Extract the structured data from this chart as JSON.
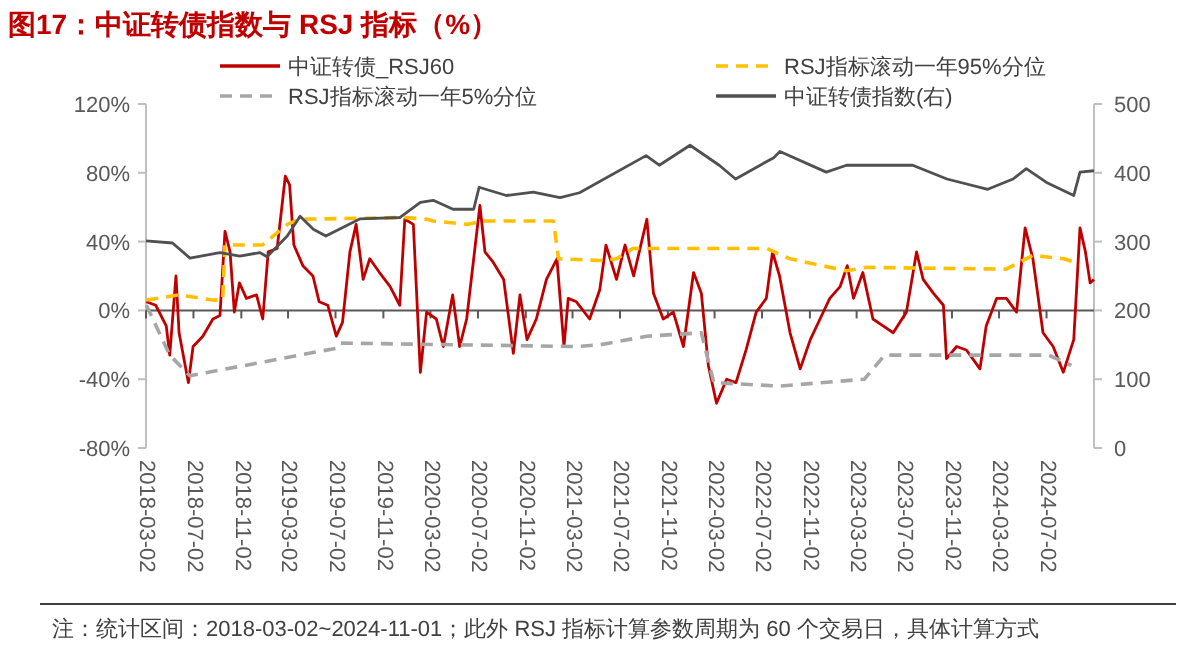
{
  "chart_data": {
    "type": "line",
    "title": "图17：中证转债指数与 RSJ 指标（%）",
    "xlim": [
      "2018-03-02",
      "2024-11-01"
    ],
    "xticks": [
      "2018-03-02",
      "2018-07-02",
      "2018-11-02",
      "2019-03-02",
      "2019-07-02",
      "2019-11-02",
      "2020-03-02",
      "2020-07-02",
      "2020-11-02",
      "2021-03-02",
      "2021-07-02",
      "2021-11-02",
      "2022-03-02",
      "2022-07-02",
      "2022-11-02",
      "2023-03-02",
      "2023-07-02",
      "2023-11-02",
      "2024-03-02",
      "2024-07-02"
    ],
    "ylim": [
      -80,
      120
    ],
    "yticks": [
      {
        "value": -80,
        "label": "-80%"
      },
      {
        "value": -40,
        "label": "-40%"
      },
      {
        "value": 0,
        "label": "0%"
      },
      {
        "value": 40,
        "label": "40%"
      },
      {
        "value": 80,
        "label": "80%"
      },
      {
        "value": 120,
        "label": "120%"
      }
    ],
    "y2lim": [
      0,
      500
    ],
    "y2ticks": [
      0,
      100,
      200,
      300,
      400,
      500
    ],
    "legend": "top",
    "annotations": [
      "注：统计区间：2018-03-02~2024-11-01；此外 RSJ 指标计算参数周期为 60 个交易日，具体计算方式"
    ],
    "series": [
      {
        "name": "中证转债_RSJ60",
        "color": "#c00000",
        "line_style": "solid",
        "x": [
          "2018-03-03",
          "2018-03-27",
          "2018-04-23",
          "2018-05-02",
          "2018-05-18",
          "2018-05-26",
          "2018-06-19",
          "2018-07-01",
          "2018-07-26",
          "2018-08-21",
          "2018-09-08",
          "2018-09-21",
          "2018-10-04",
          "2018-10-15",
          "2018-10-28",
          "2018-11-15",
          "2018-12-11",
          "2018-12-27",
          "2019-01-10",
          "2019-02-02",
          "2019-02-23",
          "2019-03-06",
          "2019-03-17",
          "2019-04-09",
          "2019-05-05",
          "2019-05-21",
          "2019-06-12",
          "2019-07-04",
          "2019-07-20",
          "2019-08-08",
          "2019-08-24",
          "2019-09-11",
          "2019-09-28",
          "2019-10-23",
          "2019-11-19",
          "2019-12-14",
          "2019-12-27",
          "2020-01-18",
          "2020-02-05",
          "2020-02-21",
          "2020-03-17",
          "2020-04-04",
          "2020-04-28",
          "2020-05-16",
          "2020-06-03",
          "2020-07-07",
          "2020-07-20",
          "2020-08-10",
          "2020-09-06",
          "2020-10-01",
          "2020-10-18",
          "2020-11-05",
          "2020-11-29",
          "2020-12-25",
          "2021-01-21",
          "2021-02-08",
          "2021-02-19",
          "2021-03-12",
          "2021-04-15",
          "2021-05-11",
          "2021-05-27",
          "2021-06-23",
          "2021-07-15",
          "2021-08-06",
          "2021-09-09",
          "2021-09-26",
          "2021-10-21",
          "2021-11-16",
          "2021-12-12",
          "2022-01-07",
          "2022-01-27",
          "2022-02-14",
          "2022-03-07",
          "2022-04-02",
          "2022-04-26",
          "2022-05-22",
          "2022-06-17",
          "2022-07-13",
          "2022-07-29",
          "2022-08-16",
          "2022-09-12",
          "2022-10-08",
          "2022-11-03",
          "2022-11-28",
          "2022-12-23",
          "2023-01-19",
          "2023-02-06",
          "2023-02-22",
          "2023-03-18",
          "2023-04-13",
          "2023-05-09",
          "2023-06-04",
          "2023-07-08",
          "2023-08-03",
          "2023-08-20",
          "2023-09-15",
          "2023-10-11",
          "2023-10-19",
          "2023-11-14",
          "2023-12-09",
          "2024-01-13",
          "2024-01-29",
          "2024-02-25",
          "2024-03-21",
          "2024-04-16",
          "2024-05-08",
          "2024-05-28",
          "2024-06-23",
          "2024-07-19",
          "2024-08-14",
          "2024-09-10",
          "2024-09-26",
          "2024-10-10",
          "2024-10-22",
          "2024-11-01"
        ],
        "values": [
          5,
          3,
          -9,
          -26,
          20,
          -13,
          -42,
          -21,
          -15,
          -5,
          -3,
          46,
          34,
          -1,
          16,
          7,
          9,
          -5,
          34,
          36,
          78,
          73,
          38,
          26,
          20,
          5,
          3,
          -15,
          -7,
          34,
          50,
          18,
          30,
          22,
          14,
          3,
          53,
          50,
          -36,
          -1,
          -5,
          -21,
          9,
          -21,
          -5,
          61,
          34,
          28,
          18,
          -25,
          9,
          -17,
          -5,
          18,
          30,
          -21,
          7,
          5,
          -5,
          12,
          38,
          18,
          38,
          20,
          53,
          10,
          -5,
          -1,
          -21,
          22,
          10,
          -32,
          -54,
          -40,
          -42,
          -23,
          -1,
          7,
          34,
          20,
          -13,
          -34,
          -17,
          -5,
          7,
          14,
          26,
          7,
          22,
          -5,
          -9,
          -13,
          -1,
          34,
          18,
          10,
          3,
          -28,
          -21,
          -23,
          -34,
          -9,
          7,
          7,
          -1,
          48,
          30,
          -13,
          -21,
          -36,
          -17,
          48,
          34,
          16,
          18
        ]
      },
      {
        "name": "RSJ指标滚动一年95%分位",
        "color": "#ffc000",
        "line_style": "dashed",
        "x": [
          "2018-03-03",
          "2018-05-25",
          "2018-08-21",
          "2018-09-15",
          "2018-09-21",
          "2018-12-26",
          "2019-02-28",
          "2019-04-02",
          "2019-12-27",
          "2020-02-22",
          "2020-03-09",
          "2020-06-05",
          "2020-07-15",
          "2021-01-12",
          "2021-01-25",
          "2021-05-11",
          "2021-06-23",
          "2021-08-04",
          "2022-07-14",
          "2022-09-12",
          "2023-02-04",
          "2023-03-26",
          "2024-03-20",
          "2024-05-28",
          "2024-08-16",
          "2024-09-26"
        ],
        "values": [
          6,
          9,
          6,
          6,
          38,
          38,
          50,
          53,
          54,
          53,
          52,
          50,
          52,
          52,
          30,
          29,
          30,
          36,
          36,
          30,
          23,
          25,
          24,
          32,
          30,
          27
        ]
      },
      {
        "name": "RSJ指标滚动一年5%分位",
        "color": "#a6a6a6",
        "line_style": "dashed",
        "x": [
          "2018-03-03",
          "2018-05-02",
          "2018-06-23",
          "2019-07-04",
          "2019-07-14",
          "2021-03-12",
          "2021-05-11",
          "2021-09-09",
          "2022-01-27",
          "2022-02-28",
          "2022-08-16",
          "2023-03-22",
          "2023-05-13",
          "2024-07-07",
          "2024-09-04"
        ],
        "values": [
          3,
          -26,
          -38,
          -22,
          -19,
          -21,
          -20,
          -15,
          -13,
          -42,
          -44,
          -40,
          -26,
          -26,
          -32
        ]
      },
      {
        "name": "中证转债指数(右)",
        "color": "#505050",
        "line_style": "solid",
        "axis": "y2",
        "x": [
          "2018-03-02",
          "2018-05-09",
          "2018-06-23",
          "2018-09-08",
          "2018-10-29",
          "2018-12-20",
          "2019-01-07",
          "2019-02-28",
          "2019-04-02",
          "2019-05-06",
          "2019-06-07",
          "2019-09-02",
          "2019-12-14",
          "2020-02-05",
          "2020-03-09",
          "2020-04-29",
          "2020-06-21",
          "2020-07-05",
          "2020-09-13",
          "2020-11-21",
          "2021-01-29",
          "2021-03-20",
          "2021-09-07",
          "2021-10-11",
          "2021-12-29",
          "2022-03-14",
          "2022-04-25",
          "2022-08-01",
          "2022-08-17",
          "2022-12-14",
          "2023-02-04",
          "2023-07-24",
          "2023-10-20",
          "2024-02-02",
          "2024-04-07",
          "2024-05-11",
          "2024-07-02",
          "2024-09-10",
          "2024-09-26",
          "2024-11-01"
        ],
        "values": [
          301,
          298,
          276,
          284,
          279,
          284,
          278,
          308,
          337,
          318,
          308,
          333,
          335,
          357,
          360,
          347,
          347,
          379,
          367,
          372,
          364,
          371,
          425,
          411,
          440,
          411,
          391,
          422,
          431,
          401,
          411,
          411,
          391,
          376,
          391,
          406,
          386,
          367,
          401,
          403
        ]
      }
    ]
  }
}
